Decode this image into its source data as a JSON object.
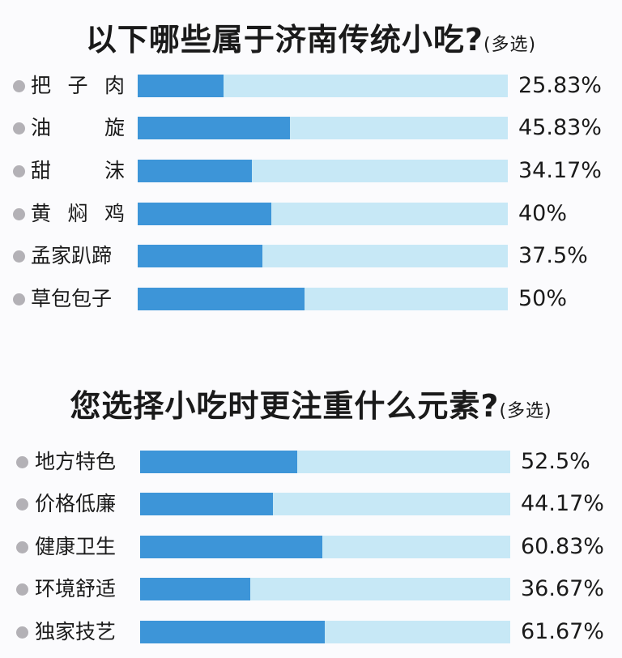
{
  "chart_data": [
    {
      "type": "bar",
      "orientation": "horizontal",
      "title": "以下哪些属于济南传统小吃?",
      "subtitle": "(多选)",
      "categories": [
        "把子肉",
        "油旋",
        "甜沫",
        "黄焖鸡",
        "孟家趴蹄",
        "草包包子"
      ],
      "values": [
        25.83,
        45.83,
        34.17,
        40,
        37.5,
        50
      ],
      "value_labels": [
        "25.83%",
        "45.83%",
        "34.17%",
        "40%",
        "37.5%",
        "50%"
      ],
      "xlim": [
        0,
        100
      ],
      "unit": "%",
      "colors": {
        "fill": "#3d95d8",
        "track": "#c7e8f6",
        "bullet": "#b3b1b6"
      },
      "legend": "none",
      "grid": false
    },
    {
      "type": "bar",
      "orientation": "horizontal",
      "title": "您选择小吃时更注重什么元素?",
      "subtitle": "(多选)",
      "categories": [
        "地方特色",
        "价格低廉",
        "健康卫生",
        "环境舒适",
        "独家技艺"
      ],
      "values": [
        52.5,
        44.17,
        60.83,
        36.67,
        61.67
      ],
      "value_labels": [
        "52.5%",
        "44.17%",
        "60.83%",
        "36.67%",
        "61.67%"
      ],
      "xlim": [
        0,
        100
      ],
      "unit": "%",
      "colors": {
        "fill": "#3d95d8",
        "track": "#c7e8f6",
        "bullet": "#b3b1b6"
      },
      "legend": "none",
      "grid": false
    }
  ],
  "section1": {
    "title": "以下哪些属于济南传统小吃?",
    "subtitle": "(多选)",
    "rows": [
      {
        "label_chars": [
          "把",
          "子",
          "肉"
        ],
        "value": 25.83,
        "value_label": "25.83%"
      },
      {
        "label_chars": [
          "油",
          "旋"
        ],
        "value": 45.83,
        "value_label": "45.83%"
      },
      {
        "label_chars": [
          "甜",
          "沫"
        ],
        "value": 34.17,
        "value_label": "34.17%"
      },
      {
        "label_chars": [
          "黄",
          "焖",
          "鸡"
        ],
        "value": 40,
        "value_label": "40%"
      },
      {
        "label_chars": [
          "孟家趴蹄"
        ],
        "value": 37.5,
        "value_label": "37.5%"
      },
      {
        "label_chars": [
          "草包包子"
        ],
        "value": 50,
        "value_label": "50%"
      }
    ]
  },
  "section2": {
    "title": "您选择小吃时更注重什么元素?",
    "subtitle": "(多选)",
    "rows": [
      {
        "label": "地方特色",
        "value": 52.5,
        "value_label": "52.5%"
      },
      {
        "label": "价格低廉",
        "value": 44.17,
        "value_label": "44.17%"
      },
      {
        "label": "健康卫生",
        "value": 60.83,
        "value_label": "60.83%"
      },
      {
        "label": "环境舒适",
        "value": 36.67,
        "value_label": "36.67%"
      },
      {
        "label": "独家技艺",
        "value": 61.67,
        "value_label": "61.67%"
      }
    ]
  }
}
